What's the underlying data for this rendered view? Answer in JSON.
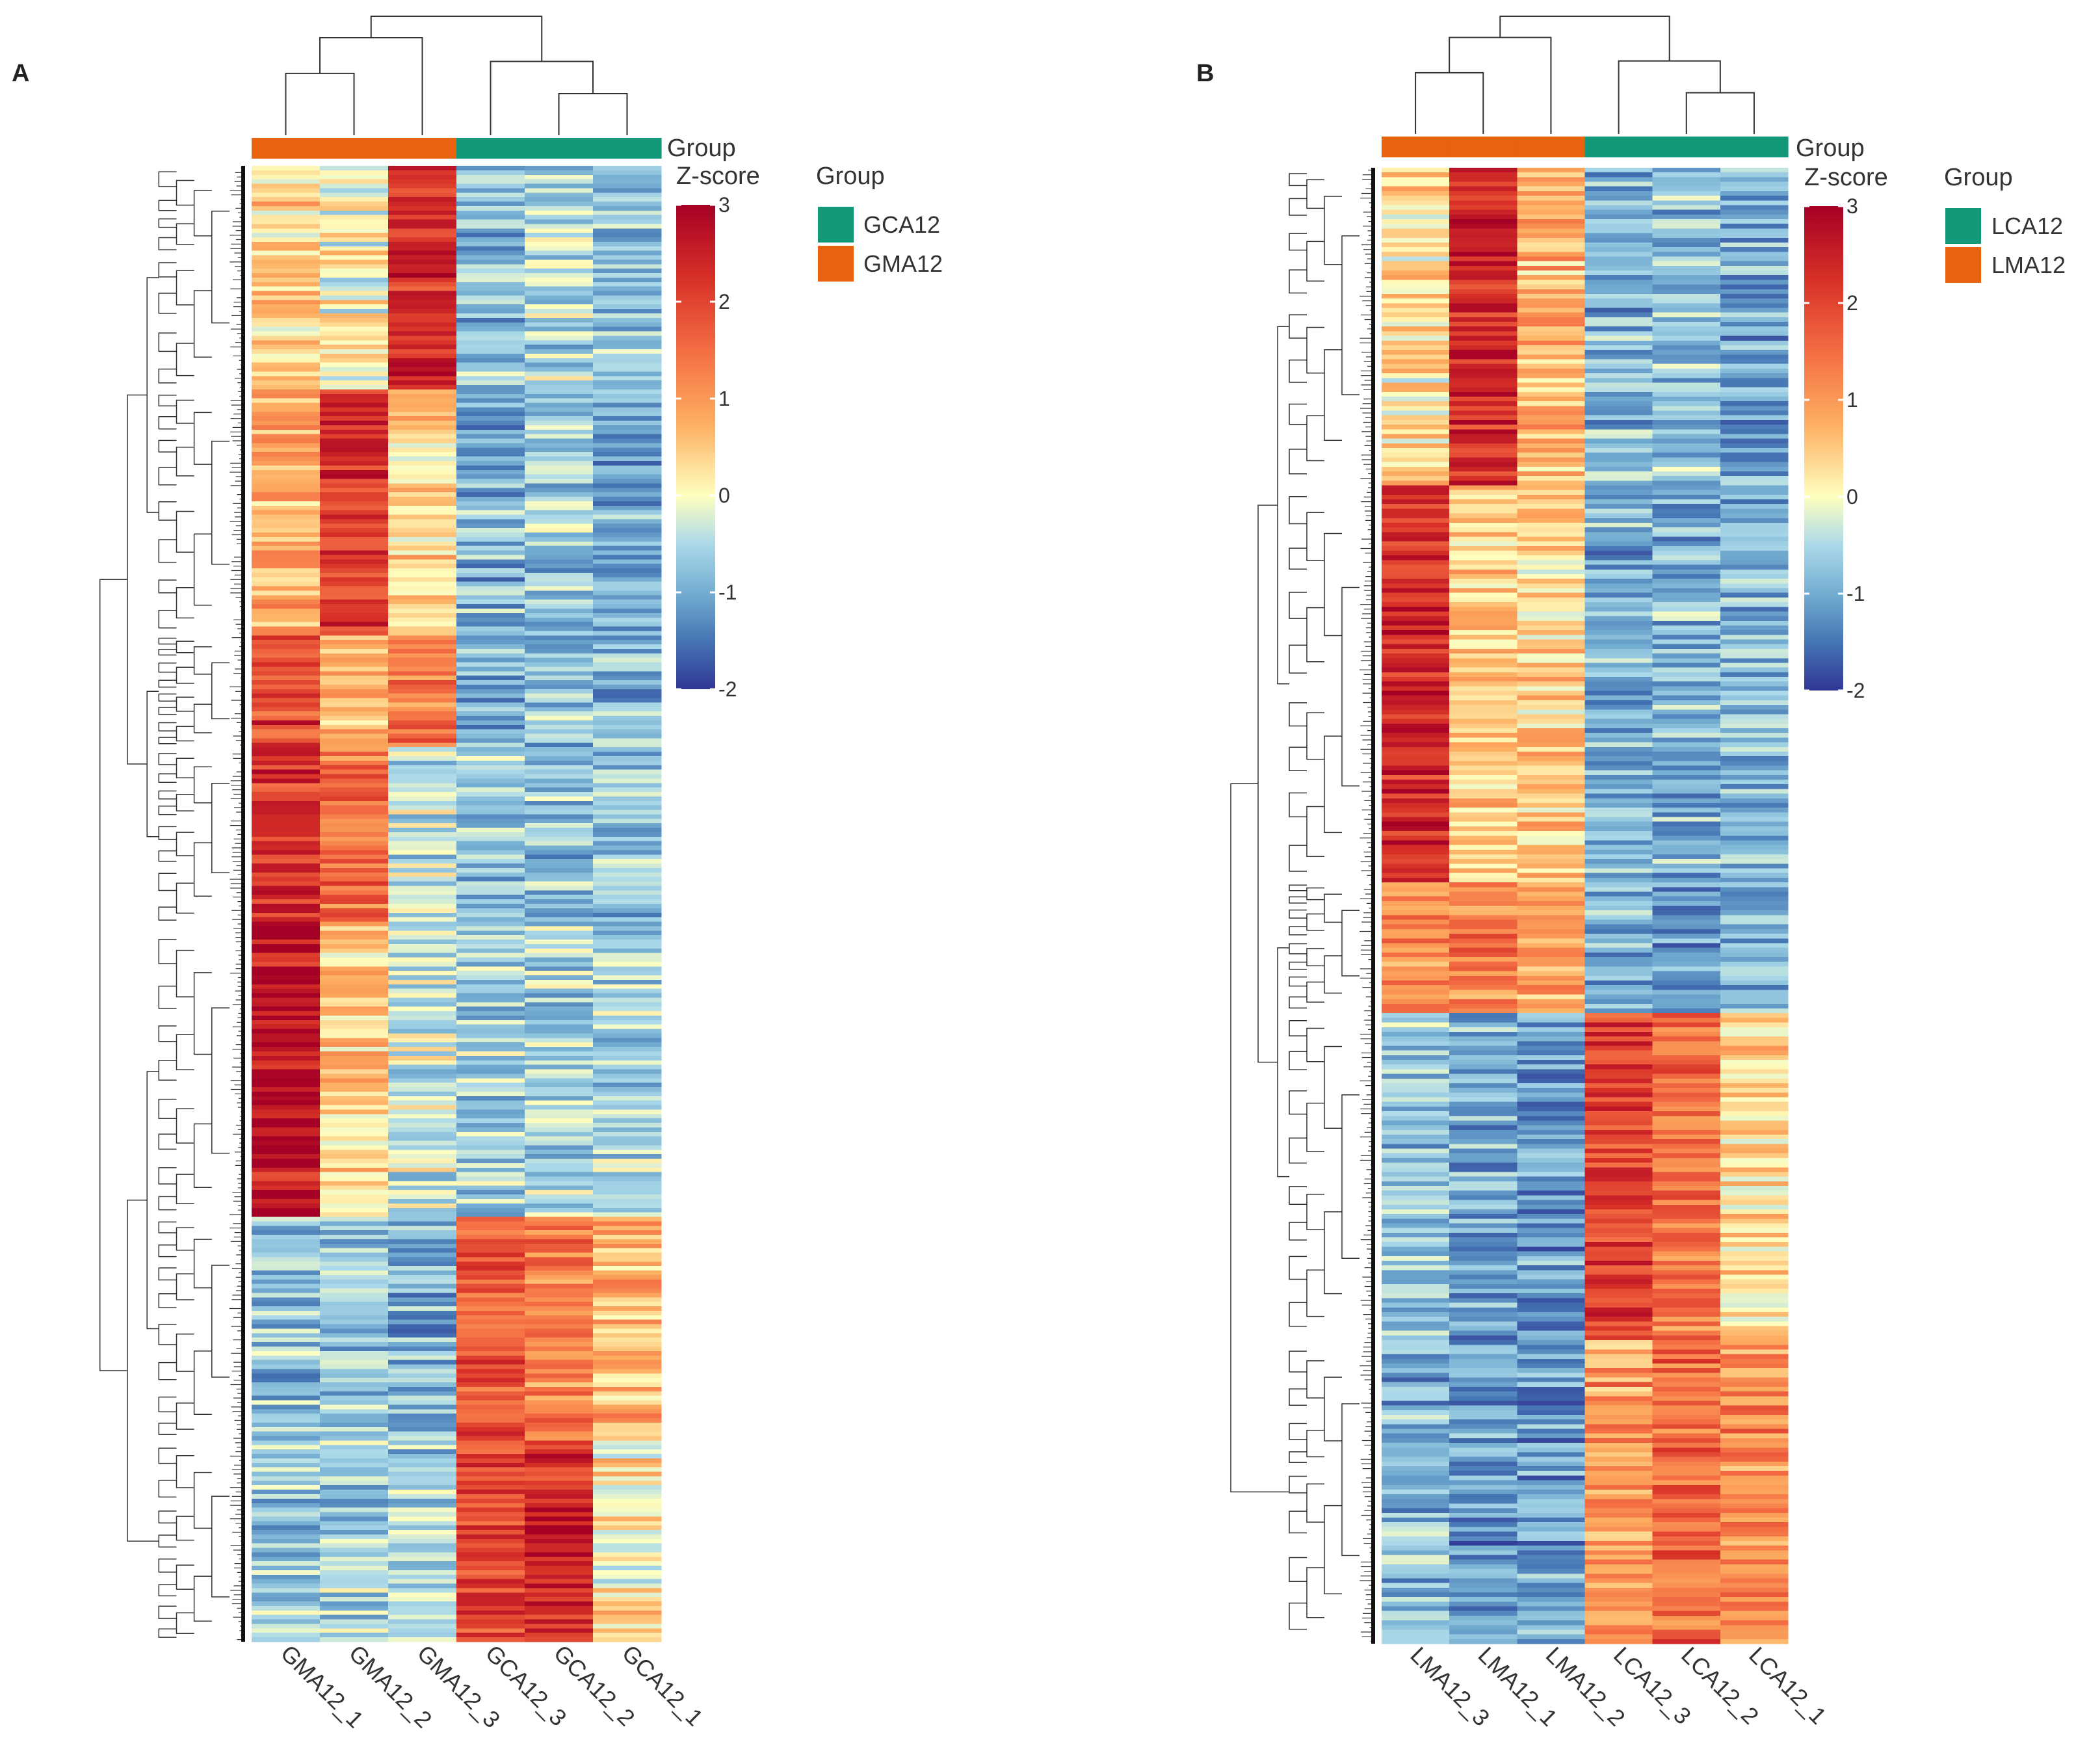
{
  "figure": {
    "colors": {
      "group_orange": "#E8620F",
      "group_green": "#13997A",
      "low": "#313695",
      "mid": "#FFFFBF",
      "high": "#A50026"
    }
  },
  "chart_data": [
    {
      "type": "heatmap",
      "panel_label": "A",
      "group_track_label": "Group",
      "legend_title": "Group",
      "colorbar_title": "Z-score",
      "colorbar_ticks": [
        "3",
        "2",
        "1",
        "0",
        "-1",
        "-2"
      ],
      "zlim": [
        -2,
        3
      ],
      "columns": [
        "GMA12_1",
        "GMA12_2",
        "GMA12_3",
        "GCA12_3",
        "GCA12_2",
        "GCA12_1"
      ],
      "column_groups": [
        "GMA12",
        "GMA12",
        "GMA12",
        "GCA12",
        "GCA12",
        "GCA12"
      ],
      "groups": [
        {
          "name": "GCA12",
          "color": "#13997A"
        },
        {
          "name": "GMA12",
          "color": "#E8620F"
        }
      ],
      "row_clusters": [
        {
          "rows": 50,
          "means": [
            0.5,
            0.0,
            2.3,
            -0.8,
            -0.5,
            -0.9
          ]
        },
        {
          "rows": 55,
          "means": [
            0.8,
            2.2,
            0.3,
            -0.9,
            -0.7,
            -1.0
          ]
        },
        {
          "rows": 25,
          "means": [
            2.0,
            0.7,
            1.3,
            -1.0,
            -0.8,
            -0.9
          ]
        },
        {
          "rows": 40,
          "means": [
            2.2,
            1.5,
            -0.4,
            -0.7,
            -0.7,
            -0.7
          ]
        },
        {
          "rows": 65,
          "means": [
            2.7,
            0.4,
            -0.3,
            -0.6,
            -0.6,
            -0.6
          ]
        },
        {
          "rows": 50,
          "means": [
            -0.8,
            -0.7,
            -0.9,
            1.8,
            1.3,
            0.7
          ]
        },
        {
          "rows": 45,
          "means": [
            -0.7,
            -0.6,
            -0.6,
            2.0,
            2.3,
            0.2
          ]
        }
      ]
    },
    {
      "type": "heatmap",
      "panel_label": "B",
      "group_track_label": "Group",
      "legend_title": "Group",
      "colorbar_title": "Z-score",
      "colorbar_ticks": [
        "3",
        "2",
        "1",
        "0",
        "-1",
        "-2"
      ],
      "zlim": [
        -2,
        3
      ],
      "columns": [
        "LMA12_3",
        "LMA12_1",
        "LMA12_2",
        "LCA12_3",
        "LCA12_2",
        "LCA12_1"
      ],
      "column_groups": [
        "LMA12",
        "LMA12",
        "LMA12",
        "LCA12",
        "LCA12",
        "LCA12"
      ],
      "groups": [
        {
          "name": "LCA12",
          "color": "#13997A"
        },
        {
          "name": "LMA12",
          "color": "#E8620F"
        }
      ],
      "row_clusters": [
        {
          "rows": 68,
          "means": [
            0.3,
            2.4,
            0.7,
            -0.9,
            -0.8,
            -1.0
          ]
        },
        {
          "rows": 85,
          "means": [
            2.4,
            0.5,
            0.4,
            -0.9,
            -0.9,
            -0.9
          ]
        },
        {
          "rows": 28,
          "means": [
            1.2,
            1.3,
            0.8,
            -1.0,
            -1.1,
            -1.0
          ]
        },
        {
          "rows": 70,
          "means": [
            -0.7,
            -1.0,
            -1.2,
            2.1,
            1.4,
            0.3
          ]
        },
        {
          "rows": 65,
          "means": [
            -0.9,
            -1.1,
            -1.1,
            1.0,
            1.6,
            1.2
          ]
        }
      ]
    }
  ]
}
